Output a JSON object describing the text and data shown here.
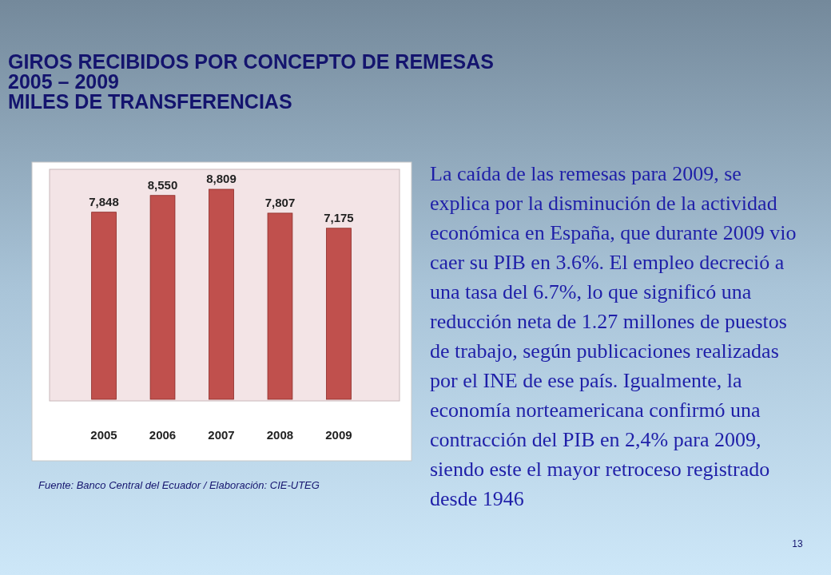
{
  "chart_data": {
    "type": "bar",
    "title": "GIROS RECIBIDOS POR CONCEPTO DE REMESAS\n2005 – 2009\nMILES DE TRANSFERENCIAS",
    "categories": [
      "2005",
      "2006",
      "2007",
      "2008",
      "2009"
    ],
    "values": [
      7848,
      8550,
      8809,
      7807,
      7175
    ],
    "value_labels": [
      "7,848",
      "8,550",
      "8,809",
      "7,807",
      "7,175"
    ],
    "color": "#c0504d",
    "annotations": [
      "Fuente: Banco Central del Ecuador / Elaboración: CIE-UTEG",
      "La caída de las remesas para 2009, se explica por la disminución de la actividad económica en España, que durante 2009 vio caer su PIB en 3.6%. El empleo decreció a una tasa del 6.7%, lo que significó una reducción neta de 1.27 millones de puestos de trabajo, según publicaciones realizadas por el INE de ese país. Igualmente, la economía norteamericana confirmó una contracción del PIB en 2,4% para 2009, siendo este el mayor retroceso registrado desde 1946",
      "13"
    ]
  }
}
